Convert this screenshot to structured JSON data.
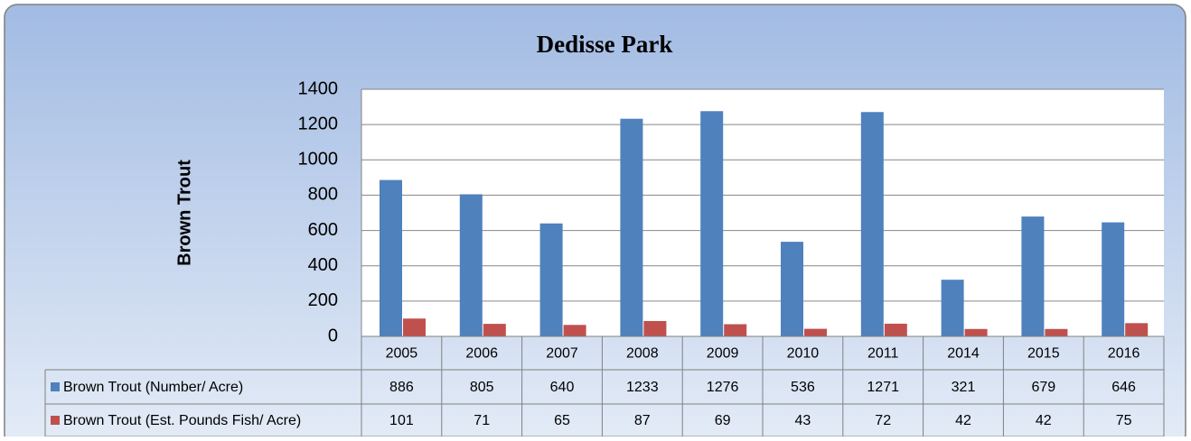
{
  "chart_data": {
    "type": "bar",
    "title": "Dedisse Park",
    "y_label": "Brown Trout",
    "categories": [
      "2005",
      "2006",
      "2007",
      "2008",
      "2009",
      "2010",
      "2011",
      "2014",
      "2015",
      "2016"
    ],
    "series": [
      {
        "name": "Brown Trout (Number/ Acre)",
        "color": "#4f81bd",
        "values": [
          886,
          805,
          640,
          1233,
          1276,
          536,
          1271,
          321,
          679,
          646
        ]
      },
      {
        "name": "Brown Trout (Est. Pounds Fish/ Acre)",
        "color": "#c0504d",
        "values": [
          101,
          71,
          65,
          87,
          69,
          43,
          72,
          42,
          42,
          75
        ]
      }
    ],
    "ylim": [
      0,
      1400
    ],
    "yticks": [
      0,
      200,
      400,
      600,
      800,
      1000,
      1200,
      1400
    ],
    "grid": true
  }
}
